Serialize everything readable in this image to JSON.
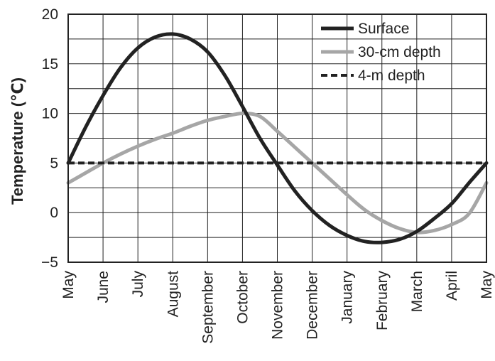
{
  "chart_data": {
    "type": "line",
    "title": "",
    "xlabel": "",
    "ylabel": "Temperature (℃)",
    "categories": [
      "May",
      "June",
      "July",
      "August",
      "September",
      "October",
      "November",
      "December",
      "January",
      "February",
      "March",
      "April",
      "May"
    ],
    "x": [
      0,
      1,
      2,
      3,
      4,
      5,
      6,
      7,
      8,
      9,
      10,
      11,
      12
    ],
    "ylim": [
      -5,
      20
    ],
    "yticks": [
      "20",
      "15",
      "10",
      "5",
      "0",
      "−5"
    ],
    "ytick_values": [
      20,
      15,
      10,
      5,
      0,
      -5
    ],
    "grid": true,
    "legend_position": "top-right",
    "series": [
      {
        "name": "Surface",
        "color": "#222222",
        "style": "solid",
        "x": [
          0,
          0.5,
          1,
          1.5,
          2,
          2.5,
          3,
          3.5,
          4,
          4.5,
          5,
          5.5,
          6,
          6.5,
          7,
          7.5,
          8,
          8.5,
          9,
          9.5,
          10,
          10.5,
          11,
          11.5,
          12
        ],
        "values": [
          5.0,
          8.6,
          11.8,
          14.6,
          16.6,
          17.7,
          18.0,
          17.5,
          16.2,
          13.8,
          10.7,
          7.5,
          4.8,
          2.2,
          0.2,
          -1.3,
          -2.3,
          -2.9,
          -3.0,
          -2.7,
          -1.9,
          -0.6,
          0.9,
          3.0,
          5.0
        ]
      },
      {
        "name": "30-cm depth",
        "color": "#a6a6a6",
        "style": "solid",
        "x": [
          0,
          0.5,
          1,
          1.5,
          2,
          2.5,
          3,
          3.5,
          4,
          4.5,
          5,
          5.5,
          6,
          6.5,
          7,
          7.5,
          8,
          8.5,
          9,
          9.5,
          10,
          10.5,
          11,
          11.5,
          12
        ],
        "values": [
          3.0,
          4.0,
          5.0,
          5.9,
          6.7,
          7.4,
          8.0,
          8.7,
          9.3,
          9.7,
          10.0,
          9.7,
          8.2,
          6.6,
          5.0,
          3.4,
          1.8,
          0.3,
          -0.8,
          -1.6,
          -2.0,
          -1.8,
          -1.2,
          -0.1,
          3.0
        ]
      },
      {
        "name": "4-m depth",
        "color": "#222222",
        "style": "dashed",
        "x": [
          0,
          12
        ],
        "values": [
          5.0,
          5.0
        ]
      }
    ]
  }
}
